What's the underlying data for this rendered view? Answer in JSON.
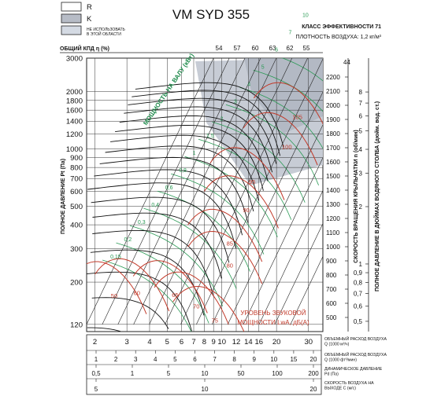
{
  "chart_data": {
    "type": "line",
    "title": "VM SYD 355",
    "efficiency_class": "КЛАСС ЭФФЕКТИВНОСТИ 71",
    "air_density": "ПЛОТНОСТЬ ВОЗДУХА: 1,2 кг/м³",
    "legend": {
      "r": "R",
      "k": "K",
      "not_used": "НЕ ИСПОЛЬЗОВАТЬ В ЭТОЙ ОБЛАСТИ"
    },
    "efficiency_label": "ОБЩИЙ КПД η (%)",
    "efficiency_values": [
      "54",
      "57",
      "60",
      "63",
      "62",
      "55"
    ],
    "shaft_power_label": "МОЩНОСТЬ НА ВАЛУ (кВт)",
    "sound_label_1": "УРОВЕНЬ ЗВУКОВОЙ",
    "sound_label_2": "МОЩНОСТИ LwA, дБ(А)",
    "ylabel": "ПОЛНОЕ ДАВЛЕНИЕ Pt (Па)",
    "yscale": "log",
    "ylim": [
      110,
      3000
    ],
    "y_ticks": [
      {
        "v": 3000,
        "label": "3000"
      },
      {
        "v": 2000,
        "label": "2000"
      },
      {
        "v": 1800,
        "label": "1800"
      },
      {
        "v": 1600,
        "label": "1600"
      },
      {
        "v": 1400,
        "label": "1400"
      },
      {
        "v": 1200,
        "label": "1200"
      },
      {
        "v": 1000,
        "label": "1000"
      },
      {
        "v": 900,
        "label": "900"
      },
      {
        "v": 800,
        "label": "800"
      },
      {
        "v": 700,
        "label": "700"
      },
      {
        "v": 600,
        "label": "600"
      },
      {
        "v": 500,
        "label": "500"
      },
      {
        "v": 400,
        "label": "400"
      },
      {
        "v": 300,
        "label": "300"
      },
      {
        "v": 200,
        "label": "200"
      },
      {
        "v": 120,
        "label": "120"
      }
    ],
    "xlabel": "ОБЪЕМНЫЙ РАСХОД ВОЗДУХА Q (1000 м³/ч)",
    "xscale": "log",
    "xlim": [
      1.8,
      36
    ],
    "x_ticks": [
      {
        "v": 2,
        "label": "2"
      },
      {
        "v": 3,
        "label": "3"
      },
      {
        "v": 4,
        "label": "4"
      },
      {
        "v": 5,
        "label": "5"
      },
      {
        "v": 6,
        "label": "6"
      },
      {
        "v": 7,
        "label": "7"
      },
      {
        "v": 8,
        "label": "8"
      },
      {
        "v": 9,
        "label": "9"
      },
      {
        "v": 10,
        "label": "10"
      },
      {
        "v": 12,
        "label": "12"
      },
      {
        "v": 14,
        "label": "14"
      },
      {
        "v": 16,
        "label": "16"
      },
      {
        "v": 20,
        "label": "20"
      },
      {
        "v": 30,
        "label": "30"
      }
    ],
    "speed_label": "СКОРОСТЬ ВРАЩЕНИЯ КРЫЛЬЧАТКИ n (об/мин)",
    "speed_ticks": [
      "2200",
      "2100",
      "2000",
      "1900",
      "1800",
      "1700",
      "1600",
      "1500",
      "1400",
      "1300",
      "1200",
      "1100",
      "1000",
      "900",
      "800",
      "700",
      "600",
      "500"
    ],
    "inch_label": "ПОЛНОЕ ДАВЛЕНИЕ В ДЮЙМАХ ВОДЯНОГО СТОЛБА (дюйм. вод. ст.)",
    "inch_ticks": [
      {
        "v": 8,
        "label": "8"
      },
      {
        "v": 7,
        "label": "7"
      },
      {
        "v": 6,
        "label": "6"
      },
      {
        "v": 5,
        "label": "5"
      },
      {
        "v": 4,
        "label": "4"
      },
      {
        "v": 3,
        "label": "3"
      },
      {
        "v": 2,
        "label": "2"
      },
      {
        "v": 1,
        "label": "1"
      },
      {
        "v": 0.9,
        "label": "0,9"
      },
      {
        "v": 0.8,
        "label": "0,8"
      },
      {
        "v": 0.7,
        "label": "0,7"
      },
      {
        "v": 0.6,
        "label": "0,6"
      },
      {
        "v": 0.5,
        "label": "0,5"
      }
    ],
    "bottom_scales": [
      {
        "label": "ОБЪЕМНЫЙ РАСХОД ВОЗДУХА Q (1000 м³/ч)",
        "ticks": [
          "2",
          "3",
          "4",
          "5",
          "6",
          "7",
          "8",
          "9",
          "10",
          "12",
          "14",
          "16",
          "20",
          "30"
        ]
      },
      {
        "label": "ОБЪЕМНЫЙ РАСХОД ВОЗДУХА Q (1000 фт³/мин)",
        "ticks": [
          "1",
          "2",
          "3",
          "4",
          "5",
          "6",
          "7",
          "8",
          "9",
          "10",
          "15",
          "20"
        ]
      },
      {
        "label": "ДИНАМИЧЕСКОЕ ДАВЛЕНИЕ Pd (Па)",
        "ticks": [
          "0,5",
          "1",
          "5",
          "10",
          "50",
          "100",
          "200"
        ]
      },
      {
        "label": "СКОРОСТЬ ВОЗДУХА НА ВЫХОДЕ C (м/с)",
        "ticks": [
          "5",
          "10",
          "20"
        ]
      }
    ],
    "speed_curves_rpm": [
      500,
      600,
      700,
      800,
      900,
      1000,
      1100,
      1200,
      1300,
      1400,
      1500,
      1600,
      1700,
      1800,
      1900,
      2000,
      2100,
      2200
    ],
    "power_labels": [
      "0,15",
      "0,2",
      "0,3",
      "0,4",
      "0,6",
      "0,8",
      "1",
      "1,5",
      "2",
      "3",
      "4",
      "5",
      "6",
      "7",
      "10",
      "15",
      "20",
      "30"
    ],
    "sound_levels": [
      {
        "level": "50",
        "at": [
          2.4,
          170
        ]
      },
      {
        "level": "60",
        "at": [
          3.2,
          176
        ]
      },
      {
        "level": "65",
        "at": [
          5.2,
          172
        ]
      },
      {
        "level": "70",
        "at": [
          6.8,
          150
        ]
      },
      {
        "level": "75",
        "at": [
          8.6,
          126
        ]
      },
      {
        "level": "80",
        "at": [
          10.4,
          245
        ]
      },
      {
        "level": "85",
        "at": [
          10.4,
          320
        ]
      },
      {
        "level": "90",
        "at": [
          12.8,
          480
        ]
      },
      {
        "level": "95",
        "at": [
          13.8,
          675
        ]
      },
      {
        "level": "100",
        "at": [
          21,
          1030
        ]
      },
      {
        "level": "105",
        "at": [
          24,
          1480
        ]
      }
    ],
    "grid": true,
    "series": []
  }
}
